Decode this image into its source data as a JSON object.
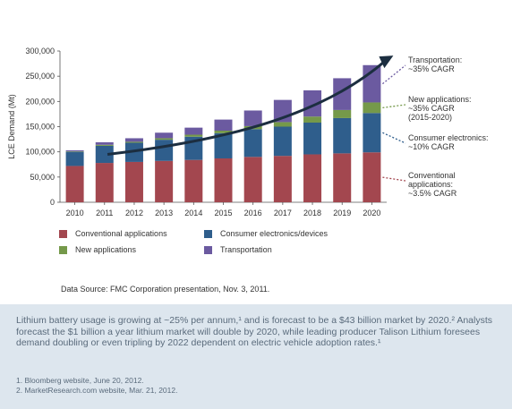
{
  "chart_data": {
    "type": "bar",
    "stacked": true,
    "ylabel": "LCE Demand (Mt)",
    "ylim": [
      0,
      300000
    ],
    "yticks": [
      "0",
      "50,000",
      "100,000",
      "150,000",
      "200,000",
      "250,000",
      "300,000"
    ],
    "categories": [
      "2010",
      "2011",
      "2012",
      "2013",
      "2014",
      "2015",
      "2016",
      "2017",
      "2018",
      "2019",
      "2020"
    ],
    "series": [
      {
        "name": "Conventional applications",
        "color": "#a3474f",
        "values": [
          72000,
          78000,
          80000,
          82000,
          84000,
          87000,
          90000,
          92000,
          95000,
          97000,
          99000
        ]
      },
      {
        "name": "Consumer electronics/devices",
        "color": "#2f5e8c",
        "values": [
          28000,
          34000,
          38000,
          42000,
          46000,
          50000,
          55000,
          58000,
          63000,
          70000,
          78000
        ]
      },
      {
        "name": "New applications",
        "color": "#75994a",
        "values": [
          1000,
          2000,
          2000,
          3000,
          4000,
          5000,
          6000,
          9000,
          12000,
          16000,
          21000
        ]
      },
      {
        "name": "Transportation",
        "color": "#6b5aa0",
        "values": [
          2000,
          5000,
          7000,
          11000,
          14000,
          22000,
          31000,
          44000,
          52000,
          63000,
          74000
        ]
      }
    ],
    "grid": false,
    "legend_position": "bottom",
    "annotations": [
      {
        "text": [
          "Transportation:",
          "~35% CAGR"
        ],
        "color": "#6b5aa0",
        "series": "Transportation"
      },
      {
        "text": [
          "New applications:",
          "~35% CAGR",
          "(2015-2020)"
        ],
        "color": "#75994a",
        "series": "New applications"
      },
      {
        "text": [
          "Consumer electronics:",
          "~10% CAGR"
        ],
        "color": "#2f5e8c",
        "series": "Consumer electronics/devices"
      },
      {
        "text": [
          "Conventional",
          "applications:",
          "~3.5% CAGR"
        ],
        "color": "#a3474f",
        "series": "Conventional applications"
      }
    ]
  },
  "source": "Data Source: FMC Corporation presentation, Nov. 3, 2011.",
  "body_text": "Lithium battery usage is growing at ~25% per annum,¹ and is forecast to be a $43 billion market by 2020.² Analysts forecast the $1 billion a year lithium market will double by 2020, while leading producer Talison Lithium foresees demand doubling or even tripling by 2022 dependent on electric vehicle adoption rates.¹",
  "footnotes": [
    "1. Bloomberg website, June 20, 2012.",
    "2. MarketResearch.com website, Mar. 21, 2012."
  ]
}
